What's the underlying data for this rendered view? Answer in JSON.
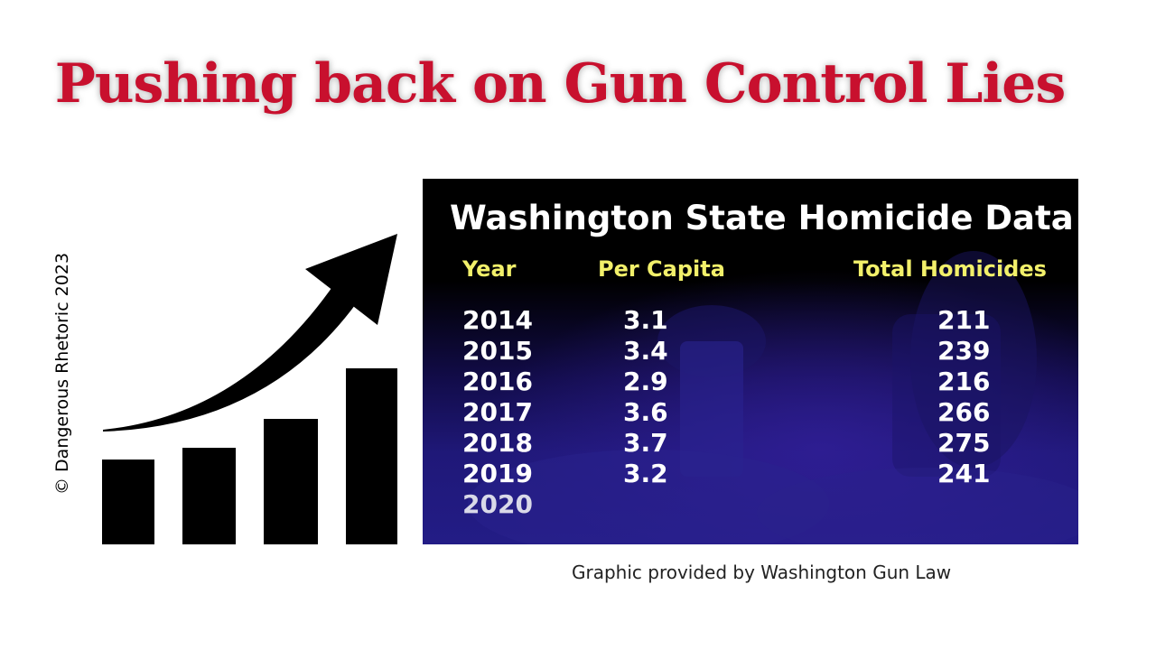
{
  "headline": "Pushing back on Gun Control Lies",
  "copyright": "© Dangerous Rhetoric 2023",
  "panel": {
    "title": "Washington State Homicide Data",
    "columns": [
      "Year",
      "Per Capita",
      "Total Homicides"
    ],
    "rows": [
      {
        "year": "2014",
        "per_capita": "3.1",
        "total": "211"
      },
      {
        "year": "2015",
        "per_capita": "3.4",
        "total": "239"
      },
      {
        "year": "2016",
        "per_capita": "2.9",
        "total": "216"
      },
      {
        "year": "2017",
        "per_capita": "3.6",
        "total": "266"
      },
      {
        "year": "2018",
        "per_capita": "3.7",
        "total": "275"
      },
      {
        "year": "2019",
        "per_capita": "3.2",
        "total": "241"
      },
      {
        "year": "2020",
        "per_capita": "",
        "total": ""
      }
    ]
  },
  "credit": "Graphic provided by Washington Gun Law",
  "colors": {
    "headline": "#c8102e",
    "column_header": "#f2f06a",
    "panel_bg": "#000000",
    "panel_tint": "#231c86"
  },
  "icon": "rising-bar-chart-arrow-icon"
}
